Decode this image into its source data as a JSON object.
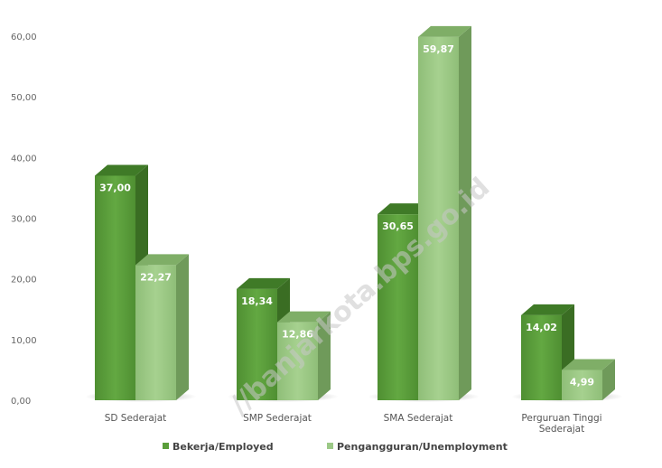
{
  "chart_data": {
    "type": "bar",
    "categories": [
      "SD Sederajat",
      "SMP Sederajat",
      "SMA Sederajat",
      "Perguruan Tinggi Sederajat"
    ],
    "category_lines": [
      [
        "SD Sederajat"
      ],
      [
        "SMP Sederajat"
      ],
      [
        "SMA Sederajat"
      ],
      [
        "Perguruan Tinggi",
        "Sederajat"
      ]
    ],
    "series": [
      {
        "name": "Bekerja/Employed",
        "values": [
          37.0,
          18.34,
          30.65,
          14.02
        ],
        "labels": [
          "37,00",
          "18,34",
          "30,65",
          "14,02"
        ],
        "color": "#5a9e3a"
      },
      {
        "name": "Pengangguran/Unemployment",
        "values": [
          22.27,
          12.86,
          59.87,
          4.99
        ],
        "labels": [
          "22,27",
          "12,86",
          "59,87",
          "4,99"
        ],
        "color": "#9cc987"
      }
    ],
    "yticks": [
      "0,00",
      "10,00",
      "20,00",
      "30,00",
      "40,00",
      "50,00",
      "60,00"
    ],
    "ylim": [
      0,
      60
    ],
    "legend_position": "bottom",
    "grid": false,
    "style": "3d-bars"
  },
  "watermark": "//banjarkota.bps.go.id"
}
